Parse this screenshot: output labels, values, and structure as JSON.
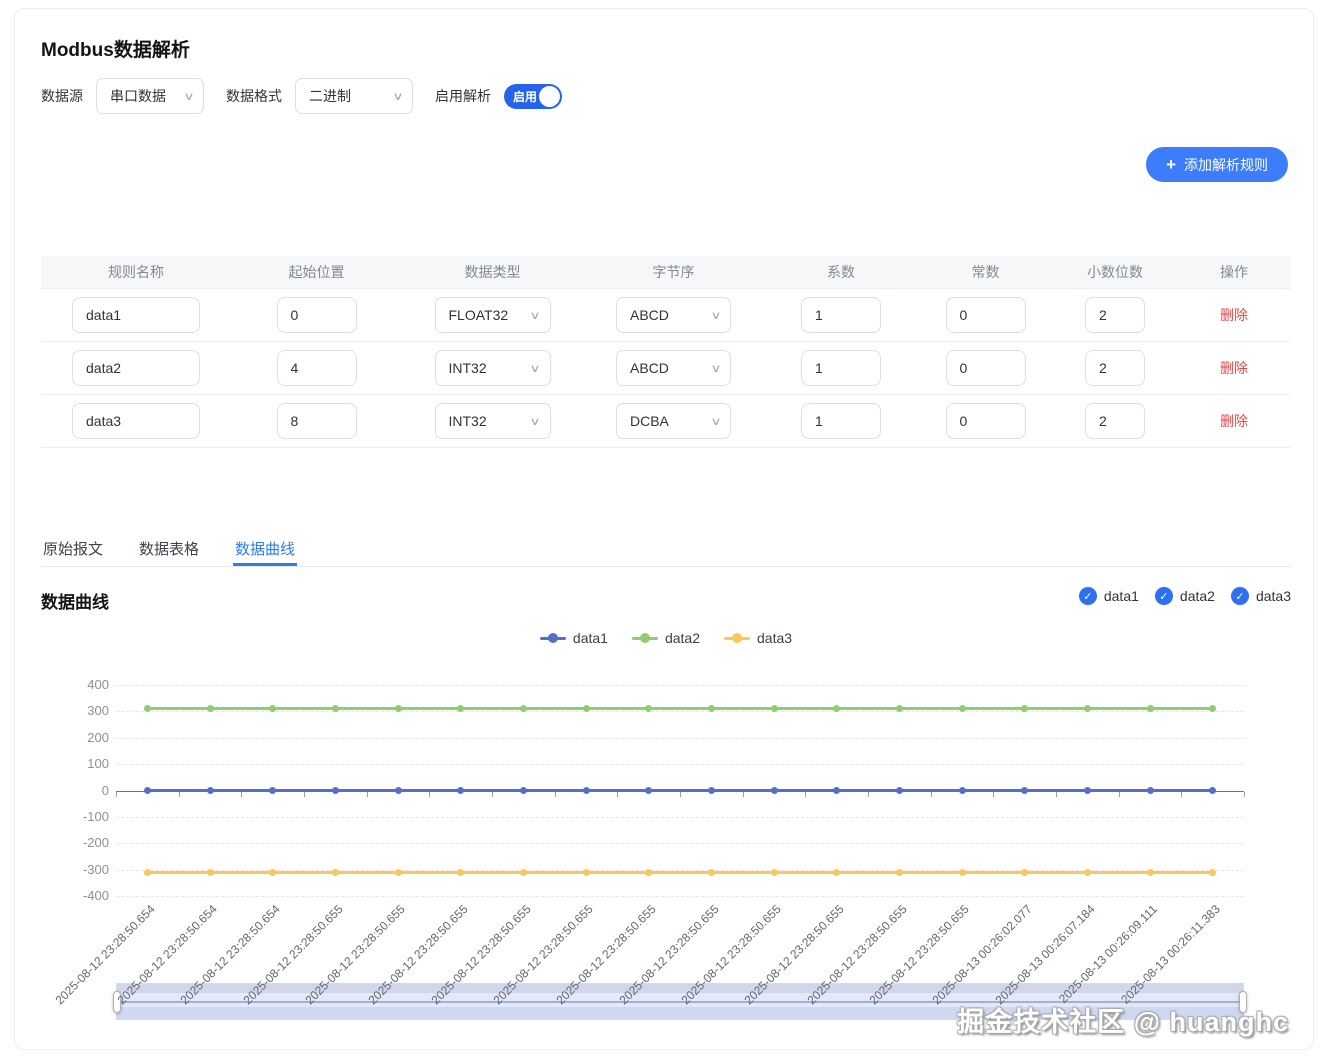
{
  "colors": {
    "accent": "#2b7cf6",
    "button_blue": "#3b7dfa",
    "toggle_blue": "#2563eb",
    "checkbox_blue": "#2f6ff2",
    "danger": "#ef4444"
  },
  "header": {
    "title": "Modbus数据解析"
  },
  "toolbar": {
    "source_label": "数据源",
    "source_value": "串口数据",
    "format_label": "数据格式",
    "format_value": "二进制",
    "enable_label": "启用解析",
    "toggle_text": "启用"
  },
  "actions": {
    "plus": "+",
    "add_rule": "添加解析规则"
  },
  "rules_table": {
    "headers": [
      "规则名称",
      "起始位置",
      "数据类型",
      "字节序",
      "系数",
      "常数",
      "小数位数",
      "操作"
    ],
    "delete_label": "删除",
    "rows": [
      {
        "name": "data1",
        "start": "0",
        "data_type": "FLOAT32",
        "byte_order": "ABCD",
        "coefficient": "1",
        "constant": "0",
        "decimals": "2"
      },
      {
        "name": "data2",
        "start": "4",
        "data_type": "INT32",
        "byte_order": "ABCD",
        "coefficient": "1",
        "constant": "0",
        "decimals": "2"
      },
      {
        "name": "data3",
        "start": "8",
        "data_type": "INT32",
        "byte_order": "DCBA",
        "coefficient": "1",
        "constant": "0",
        "decimals": "2"
      }
    ]
  },
  "tabs": [
    {
      "label": "原始报文",
      "active": false
    },
    {
      "label": "数据表格",
      "active": false
    },
    {
      "label": "数据曲线",
      "active": true
    }
  ],
  "chart_section": {
    "title": "数据曲线",
    "checkboxes": [
      {
        "label": "data1",
        "checked": true
      },
      {
        "label": "data2",
        "checked": true
      },
      {
        "label": "data3",
        "checked": true
      }
    ]
  },
  "chart_data": {
    "type": "line",
    "x": [
      "2025-08-12 23:28:50.654",
      "2025-08-12 23:28:50.654",
      "2025-08-12 23:28:50.654",
      "2025-08-12 23:28:50.655",
      "2025-08-12 23:28:50.655",
      "2025-08-12 23:28:50.655",
      "2025-08-12 23:28:50.655",
      "2025-08-12 23:28:50.655",
      "2025-08-12 23:28:50.655",
      "2025-08-12 23:28:50.655",
      "2025-08-12 23:28:50.655",
      "2025-08-12 23:28:50.655",
      "2025-08-12 23:28:50.655",
      "2025-08-12 23:28:50.655",
      "2025-08-13 00:26:02.077",
      "2025-08-13 00:26:07.184",
      "2025-08-13 00:26:09.111",
      "2025-08-13 00:26:11.383"
    ],
    "series": [
      {
        "name": "data1",
        "color": "#5470c6",
        "values": [
          0,
          0,
          0,
          0,
          0,
          0,
          0,
          0,
          0,
          0,
          0,
          0,
          0,
          0,
          0,
          0,
          0,
          0
        ]
      },
      {
        "name": "data2",
        "color": "#91cc75",
        "values": [
          310,
          310,
          310,
          310,
          310,
          310,
          310,
          310,
          310,
          310,
          310,
          310,
          310,
          310,
          310,
          310,
          310,
          310
        ]
      },
      {
        "name": "data3",
        "color": "#fac858",
        "values": [
          -310,
          -310,
          -310,
          -310,
          -310,
          -310,
          -310,
          -310,
          -310,
          -310,
          -310,
          -310,
          -310,
          -310,
          -310,
          -310,
          -310,
          -310
        ]
      }
    ],
    "ylim": [
      -400,
      400
    ],
    "ytick_interval": 100,
    "grid": "horizontal-dashed",
    "legend_position": "top-center",
    "x_label_rotation": 45,
    "datazoom_slider": true
  },
  "watermark": "掘金技术社区 @ huanghc"
}
